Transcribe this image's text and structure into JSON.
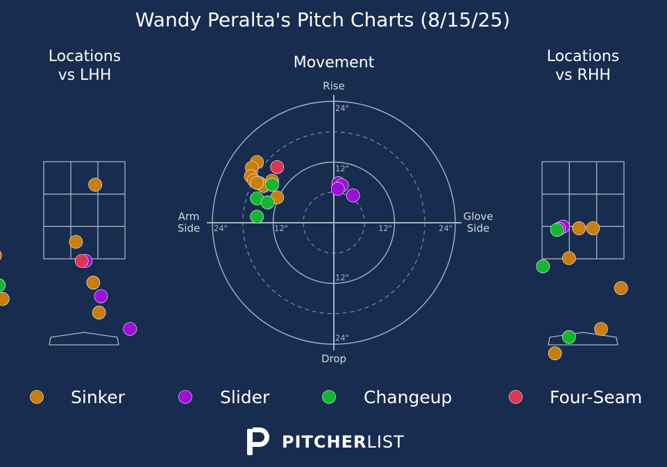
{
  "title": "Wandy Peralta's Pitch Charts (8/15/25)",
  "panels": {
    "lhh_title_l1": "Locations",
    "lhh_title_l2": "vs LHH",
    "movement_title": "Movement",
    "rhh_title_l1": "Locations",
    "rhh_title_l2": "vs RHH"
  },
  "movement_axes": {
    "rise": "Rise",
    "drop": "Drop",
    "arm_l1": "Arm",
    "arm_l2": "Side",
    "glove_l1": "Glove",
    "glove_l2": "Side",
    "tick_top_24": "24\"",
    "tick_top_12": "12\"",
    "tick_bottom_12": "12\"",
    "tick_bottom_24": "24\"",
    "tick_left_24": "24\"",
    "tick_left_12": "12\"",
    "tick_right_12": "12\"",
    "tick_right_24": "24\""
  },
  "legend": [
    {
      "label": "Sinker",
      "color": "#c97d0a"
    },
    {
      "label": "Slider",
      "color": "#9b0fd6"
    },
    {
      "label": "Changeup",
      "color": "#15b62f"
    },
    {
      "label": "Four-Seam",
      "color": "#dc3652"
    }
  ],
  "brand": {
    "bold": "PITCHER",
    "light": "LIST"
  },
  "chart_data": [
    {
      "type": "scatter",
      "name": "Locations vs LHH",
      "xlim": [
        -2.6,
        2.6
      ],
      "ylim": [
        0,
        5
      ],
      "series": [
        {
          "name": "Sinker",
          "color": "#c97d0a",
          "points": [
            [
              0.3,
              3.25
            ],
            [
              -0.2,
              2.2
            ],
            [
              -2.3,
              1.95
            ],
            [
              0.25,
              1.45
            ],
            [
              -2.1,
              1.15
            ],
            [
              0.4,
              0.9
            ]
          ]
        },
        {
          "name": "Slider",
          "color": "#9b0fd6",
          "points": [
            [
              0.05,
              1.85
            ],
            [
              0.45,
              1.2
            ],
            [
              1.2,
              0.6
            ]
          ]
        },
        {
          "name": "Changeup",
          "color": "#15b62f",
          "points": [
            [
              -2.2,
              1.4
            ]
          ]
        },
        {
          "name": "Four-Seam",
          "color": "#dc3652",
          "points": [
            [
              -0.05,
              1.85
            ]
          ]
        }
      ]
    },
    {
      "type": "scatter",
      "name": "Movement",
      "xlim": [
        -24,
        24
      ],
      "ylim": [
        -24,
        24
      ],
      "series": [
        {
          "name": "Sinker",
          "color": "#c97d0a",
          "points": [
            [
              -15.2,
              12.0
            ],
            [
              -16.2,
              10.9
            ],
            [
              -16.4,
              9.2
            ],
            [
              -15.8,
              8.4
            ],
            [
              -14.7,
              7.8
            ],
            [
              -13.9,
              7.3
            ],
            [
              -12.2,
              8.3
            ],
            [
              -15.2,
              7.9
            ],
            [
              -11.2,
              5.0
            ]
          ]
        },
        {
          "name": "Slider",
          "color": "#9b0fd6",
          "points": [
            [
              0.9,
              7.8
            ],
            [
              1.6,
              7.4
            ],
            [
              0.8,
              6.7
            ],
            [
              3.8,
              5.4
            ]
          ]
        },
        {
          "name": "Changeup",
          "color": "#15b62f",
          "points": [
            [
              -12.2,
              7.5
            ],
            [
              -15.2,
              4.8
            ],
            [
              -13.1,
              4.0
            ],
            [
              -15.2,
              1.2
            ]
          ]
        },
        {
          "name": "Four-Seam",
          "color": "#dc3652",
          "points": [
            [
              -11.2,
              11.0
            ]
          ]
        }
      ]
    },
    {
      "type": "scatter",
      "name": "Locations vs RHH",
      "xlim": [
        -2.6,
        2.6
      ],
      "ylim": [
        0,
        5
      ],
      "series": [
        {
          "name": "Sinker",
          "color": "#c97d0a",
          "points": [
            [
              0.25,
              2.45
            ],
            [
              -0.35,
              1.9
            ],
            [
              0.45,
              0.6
            ],
            [
              -0.7,
              0.15
            ],
            [
              -0.1,
              2.45
            ],
            [
              0.95,
              1.35
            ]
          ]
        },
        {
          "name": "Slider",
          "color": "#9b0fd6",
          "points": [
            [
              -0.5,
              2.48
            ],
            [
              -0.6,
              2.44
            ]
          ]
        },
        {
          "name": "Changeup",
          "color": "#15b62f",
          "points": [
            [
              -0.65,
              2.42
            ],
            [
              -1.0,
              1.75
            ],
            [
              -0.35,
              0.45
            ]
          ]
        },
        {
          "name": "Four-Seam",
          "color": "#dc3652",
          "points": []
        }
      ]
    }
  ]
}
